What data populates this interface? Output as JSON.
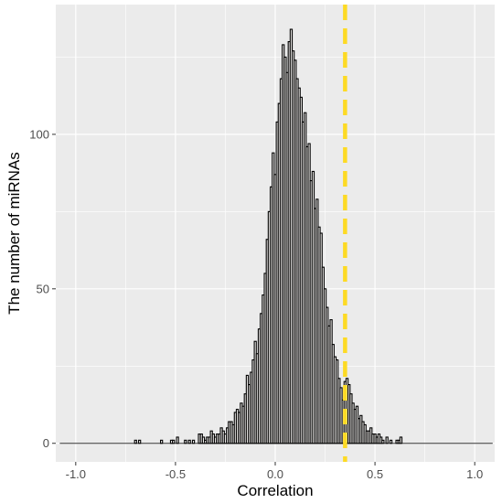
{
  "chart_data": {
    "type": "bar",
    "title": "",
    "xlabel": "Correlation",
    "ylabel": "The number of miRNAs",
    "xlim": [
      -1.1,
      1.1
    ],
    "ylim": [
      -6,
      142
    ],
    "x_ticks": [
      -1.0,
      -0.5,
      0.0,
      0.5,
      1.0
    ],
    "x_tick_labels": [
      "-1.0",
      "-0.5",
      "0.0",
      "0.5",
      "1.0"
    ],
    "y_ticks": [
      0,
      50,
      100
    ],
    "y_tick_labels": [
      "0",
      "50",
      "100"
    ],
    "grid": true,
    "legend": "none",
    "bin_width": 0.01,
    "bins": [
      {
        "x": -0.7,
        "count": 1
      },
      {
        "x": -0.68,
        "count": 1
      },
      {
        "x": -0.57,
        "count": 1
      },
      {
        "x": -0.52,
        "count": 1
      },
      {
        "x": -0.51,
        "count": 1
      },
      {
        "x": -0.49,
        "count": 2
      },
      {
        "x": -0.45,
        "count": 1
      },
      {
        "x": -0.43,
        "count": 1
      },
      {
        "x": -0.41,
        "count": 1
      },
      {
        "x": -0.38,
        "count": 3
      },
      {
        "x": -0.37,
        "count": 3
      },
      {
        "x": -0.36,
        "count": 2
      },
      {
        "x": -0.35,
        "count": 1
      },
      {
        "x": -0.34,
        "count": 2
      },
      {
        "x": -0.33,
        "count": 2
      },
      {
        "x": -0.32,
        "count": 4
      },
      {
        "x": -0.31,
        "count": 3
      },
      {
        "x": -0.3,
        "count": 2
      },
      {
        "x": -0.29,
        "count": 3
      },
      {
        "x": -0.28,
        "count": 3
      },
      {
        "x": -0.27,
        "count": 5
      },
      {
        "x": -0.26,
        "count": 4
      },
      {
        "x": -0.25,
        "count": 3
      },
      {
        "x": -0.24,
        "count": 5
      },
      {
        "x": -0.23,
        "count": 7
      },
      {
        "x": -0.22,
        "count": 7
      },
      {
        "x": -0.21,
        "count": 6
      },
      {
        "x": -0.2,
        "count": 10
      },
      {
        "x": -0.19,
        "count": 11
      },
      {
        "x": -0.18,
        "count": 10
      },
      {
        "x": -0.17,
        "count": 13
      },
      {
        "x": -0.16,
        "count": 12
      },
      {
        "x": -0.15,
        "count": 16
      },
      {
        "x": -0.14,
        "count": 22
      },
      {
        "x": -0.13,
        "count": 19
      },
      {
        "x": -0.12,
        "count": 23
      },
      {
        "x": -0.11,
        "count": 27
      },
      {
        "x": -0.1,
        "count": 33
      },
      {
        "x": -0.09,
        "count": 29
      },
      {
        "x": -0.08,
        "count": 37
      },
      {
        "x": -0.07,
        "count": 42
      },
      {
        "x": -0.06,
        "count": 48
      },
      {
        "x": -0.05,
        "count": 55
      },
      {
        "x": -0.04,
        "count": 66
      },
      {
        "x": -0.03,
        "count": 75
      },
      {
        "x": -0.02,
        "count": 83
      },
      {
        "x": -0.01,
        "count": 94
      },
      {
        "x": 0.0,
        "count": 87
      },
      {
        "x": 0.01,
        "count": 104
      },
      {
        "x": 0.02,
        "count": 110
      },
      {
        "x": 0.03,
        "count": 118
      },
      {
        "x": 0.04,
        "count": 129
      },
      {
        "x": 0.05,
        "count": 125
      },
      {
        "x": 0.06,
        "count": 120
      },
      {
        "x": 0.07,
        "count": 130
      },
      {
        "x": 0.08,
        "count": 134
      },
      {
        "x": 0.09,
        "count": 127
      },
      {
        "x": 0.1,
        "count": 124
      },
      {
        "x": 0.11,
        "count": 118
      },
      {
        "x": 0.12,
        "count": 115
      },
      {
        "x": 0.13,
        "count": 112
      },
      {
        "x": 0.14,
        "count": 104
      },
      {
        "x": 0.15,
        "count": 107
      },
      {
        "x": 0.16,
        "count": 96
      },
      {
        "x": 0.17,
        "count": 97
      },
      {
        "x": 0.18,
        "count": 85
      },
      {
        "x": 0.19,
        "count": 88
      },
      {
        "x": 0.2,
        "count": 76
      },
      {
        "x": 0.21,
        "count": 79
      },
      {
        "x": 0.22,
        "count": 70
      },
      {
        "x": 0.23,
        "count": 68
      },
      {
        "x": 0.24,
        "count": 57
      },
      {
        "x": 0.25,
        "count": 50
      },
      {
        "x": 0.26,
        "count": 44
      },
      {
        "x": 0.27,
        "count": 38
      },
      {
        "x": 0.28,
        "count": 40
      },
      {
        "x": 0.29,
        "count": 32
      },
      {
        "x": 0.3,
        "count": 28
      },
      {
        "x": 0.31,
        "count": 27
      },
      {
        "x": 0.32,
        "count": 21
      },
      {
        "x": 0.33,
        "count": 18
      },
      {
        "x": 0.34,
        "count": 14
      },
      {
        "x": 0.35,
        "count": 20
      },
      {
        "x": 0.36,
        "count": 21
      },
      {
        "x": 0.37,
        "count": 19
      },
      {
        "x": 0.38,
        "count": 16
      },
      {
        "x": 0.39,
        "count": 13
      },
      {
        "x": 0.4,
        "count": 11
      },
      {
        "x": 0.41,
        "count": 12
      },
      {
        "x": 0.42,
        "count": 8
      },
      {
        "x": 0.43,
        "count": 9
      },
      {
        "x": 0.44,
        "count": 7
      },
      {
        "x": 0.45,
        "count": 6
      },
      {
        "x": 0.46,
        "count": 4
      },
      {
        "x": 0.47,
        "count": 4
      },
      {
        "x": 0.48,
        "count": 5
      },
      {
        "x": 0.49,
        "count": 3
      },
      {
        "x": 0.5,
        "count": 3
      },
      {
        "x": 0.51,
        "count": 2
      },
      {
        "x": 0.52,
        "count": 3
      },
      {
        "x": 0.53,
        "count": 2
      },
      {
        "x": 0.54,
        "count": 1
      },
      {
        "x": 0.56,
        "count": 2
      },
      {
        "x": 0.58,
        "count": 1
      },
      {
        "x": 0.61,
        "count": 1
      },
      {
        "x": 0.62,
        "count": 1
      },
      {
        "x": 0.63,
        "count": 2
      }
    ],
    "baseline": {
      "from": -1.08,
      "to": 1.09,
      "y": 0
    },
    "threshold_line": {
      "x": 0.35,
      "style": "dashed",
      "color": "#FDDA24"
    },
    "colors": {
      "panel_background": "#EBEBEB",
      "grid_major": "#FFFFFF",
      "bar_fill": "#F2F0EE",
      "bar_outline": "#000000",
      "threshold": "#FDDA24",
      "tick_text": "#4D4D4D",
      "title_text": "#000000"
    }
  }
}
